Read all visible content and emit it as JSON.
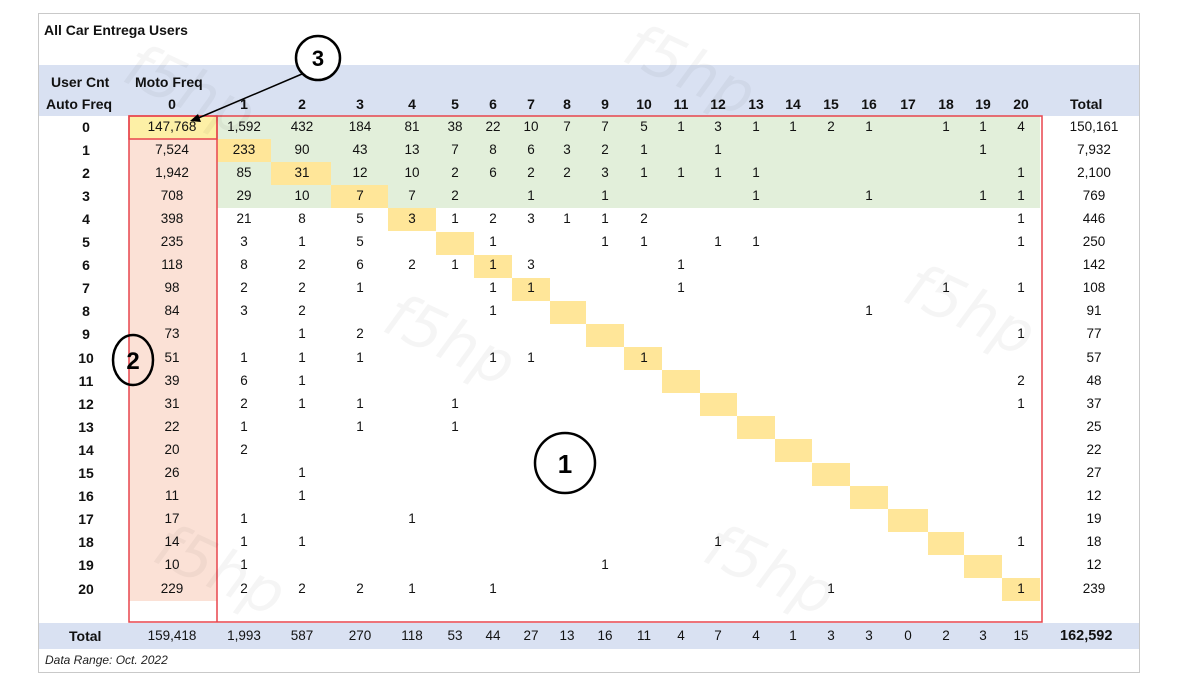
{
  "title": "All Car Entrega Users",
  "footnote": "Data Range: Oct. 2022",
  "header": {
    "corner_top": "User Cnt",
    "col_group": "Moto Freq",
    "row_group": "Auto Freq",
    "total_label": "Total"
  },
  "callouts": [
    "1",
    "2",
    "3"
  ],
  "colors": {
    "header_band": "#d9e1f2",
    "green_region": "#e2efda",
    "diagonal": "#ffe699",
    "row0_col0": "#fdf0a6",
    "col0": "#fbe1d6",
    "outline": "#e8454d"
  },
  "chart_data": {
    "type": "table",
    "row_axis": "Auto Freq",
    "col_axis": "Moto Freq",
    "columns": [
      "0",
      "1",
      "2",
      "3",
      "4",
      "5",
      "6",
      "7",
      "8",
      "9",
      "10",
      "11",
      "12",
      "13",
      "14",
      "15",
      "16",
      "17",
      "18",
      "19",
      "20"
    ],
    "rows": [
      {
        "label": "0",
        "cells": [
          "147,768",
          "1,592",
          "432",
          "184",
          "81",
          "38",
          "22",
          "10",
          "7",
          "7",
          "5",
          "1",
          "3",
          "1",
          "1",
          "2",
          "1",
          "",
          "1",
          "1",
          "4"
        ],
        "total": "150,161"
      },
      {
        "label": "1",
        "cells": [
          "7,524",
          "233",
          "90",
          "43",
          "13",
          "7",
          "8",
          "6",
          "3",
          "2",
          "1",
          "",
          "1",
          "",
          "",
          "",
          "",
          "",
          "",
          "1",
          ""
        ],
        "total": "7,932"
      },
      {
        "label": "2",
        "cells": [
          "1,942",
          "85",
          "31",
          "12",
          "10",
          "2",
          "6",
          "2",
          "2",
          "3",
          "1",
          "1",
          "1",
          "1",
          "",
          "",
          "",
          "",
          "",
          "",
          "1"
        ],
        "total": "2,100"
      },
      {
        "label": "3",
        "cells": [
          "708",
          "29",
          "10",
          "7",
          "7",
          "2",
          "",
          "1",
          "",
          "1",
          "",
          "",
          "",
          "1",
          "",
          "",
          "1",
          "",
          "",
          "1",
          "1"
        ],
        "total": "769"
      },
      {
        "label": "4",
        "cells": [
          "398",
          "21",
          "8",
          "5",
          "3",
          "1",
          "2",
          "3",
          "1",
          "1",
          "2",
          "",
          "",
          "",
          "",
          "",
          "",
          "",
          "",
          "",
          "1"
        ],
        "total": "446"
      },
      {
        "label": "5",
        "cells": [
          "235",
          "3",
          "1",
          "5",
          "",
          "",
          "1",
          "",
          "",
          "1",
          "1",
          "",
          "1",
          "1",
          "",
          "",
          "",
          "",
          "",
          "",
          "1"
        ],
        "total": "250"
      },
      {
        "label": "6",
        "cells": [
          "118",
          "8",
          "2",
          "6",
          "2",
          "1",
          "1",
          "3",
          "",
          "",
          "",
          "1",
          "",
          "",
          "",
          "",
          "",
          "",
          "",
          "",
          ""
        ],
        "total": "142"
      },
      {
        "label": "7",
        "cells": [
          "98",
          "2",
          "2",
          "1",
          "",
          "",
          "1",
          "1",
          "",
          "",
          "",
          "1",
          "",
          "",
          "",
          "",
          "",
          "",
          "1",
          "",
          "1"
        ],
        "total": "108"
      },
      {
        "label": "8",
        "cells": [
          "84",
          "3",
          "2",
          "",
          "",
          "",
          "1",
          "",
          "",
          "",
          "",
          "",
          "",
          "",
          "",
          "",
          "1",
          "",
          "",
          "",
          ""
        ],
        "total": "91"
      },
      {
        "label": "9",
        "cells": [
          "73",
          "",
          "1",
          "2",
          "",
          "",
          "",
          "",
          "",
          "",
          "",
          "",
          "",
          "",
          "",
          "",
          "",
          "",
          "",
          "",
          "1"
        ],
        "total": "77"
      },
      {
        "label": "10",
        "cells": [
          "51",
          "1",
          "1",
          "1",
          "",
          "",
          "1",
          "1",
          "",
          "",
          "1",
          "",
          "",
          "",
          "",
          "",
          "",
          "",
          "",
          "",
          ""
        ],
        "total": "57"
      },
      {
        "label": "11",
        "cells": [
          "39",
          "6",
          "1",
          "",
          "",
          "",
          "",
          "",
          "",
          "",
          "",
          "",
          "",
          "",
          "",
          "",
          "",
          "",
          "",
          "",
          "2"
        ],
        "total": "48"
      },
      {
        "label": "12",
        "cells": [
          "31",
          "2",
          "1",
          "1",
          "",
          "1",
          "",
          "",
          "",
          "",
          "",
          "",
          "",
          "",
          "",
          "",
          "",
          "",
          "",
          "",
          "1"
        ],
        "total": "37"
      },
      {
        "label": "13",
        "cells": [
          "22",
          "1",
          "",
          "1",
          "",
          "1",
          "",
          "",
          "",
          "",
          "",
          "",
          "",
          "",
          "",
          "",
          "",
          "",
          "",
          "",
          ""
        ],
        "total": "25"
      },
      {
        "label": "14",
        "cells": [
          "20",
          "2",
          "",
          "",
          "",
          "",
          "",
          "",
          "",
          "",
          "",
          "",
          "",
          "",
          "",
          "",
          "",
          "",
          "",
          "",
          ""
        ],
        "total": "22"
      },
      {
        "label": "15",
        "cells": [
          "26",
          "",
          "1",
          "",
          "",
          "",
          "",
          "",
          "",
          "",
          "",
          "",
          "",
          "",
          "",
          "",
          "",
          "",
          "",
          "",
          ""
        ],
        "total": "27"
      },
      {
        "label": "16",
        "cells": [
          "11",
          "",
          "1",
          "",
          "",
          "",
          "",
          "",
          "",
          "",
          "",
          "",
          "",
          "",
          "",
          "",
          "",
          "",
          "",
          "",
          ""
        ],
        "total": "12"
      },
      {
        "label": "17",
        "cells": [
          "17",
          "1",
          "",
          "",
          "1",
          "",
          "",
          "",
          "",
          "",
          "",
          "",
          "",
          "",
          "",
          "",
          "",
          "",
          "",
          "",
          ""
        ],
        "total": "19"
      },
      {
        "label": "18",
        "cells": [
          "14",
          "1",
          "1",
          "",
          "",
          "",
          "",
          "",
          "",
          "",
          "",
          "",
          "1",
          "",
          "",
          "",
          "",
          "",
          "",
          "",
          "1"
        ],
        "total": "18"
      },
      {
        "label": "19",
        "cells": [
          "10",
          "1",
          "",
          "",
          "",
          "",
          "",
          "",
          "",
          "1",
          "",
          "",
          "",
          "",
          "",
          "",
          "",
          "",
          "",
          "",
          ""
        ],
        "total": "12"
      },
      {
        "label": "20",
        "cells": [
          "229",
          "2",
          "2",
          "2",
          "1",
          "",
          "1",
          "",
          "",
          "",
          "",
          "",
          "",
          "",
          "",
          "1",
          "",
          "",
          "",
          "",
          "1"
        ],
        "total": "239"
      }
    ],
    "column_totals": [
      "159,418",
      "1,993",
      "587",
      "270",
      "118",
      "53",
      "44",
      "27",
      "13",
      "16",
      "11",
      "4",
      "7",
      "4",
      "1",
      "3",
      "3",
      "0",
      "2",
      "3",
      "15"
    ],
    "grand_total": "162,592",
    "total_row_label": "Total"
  }
}
